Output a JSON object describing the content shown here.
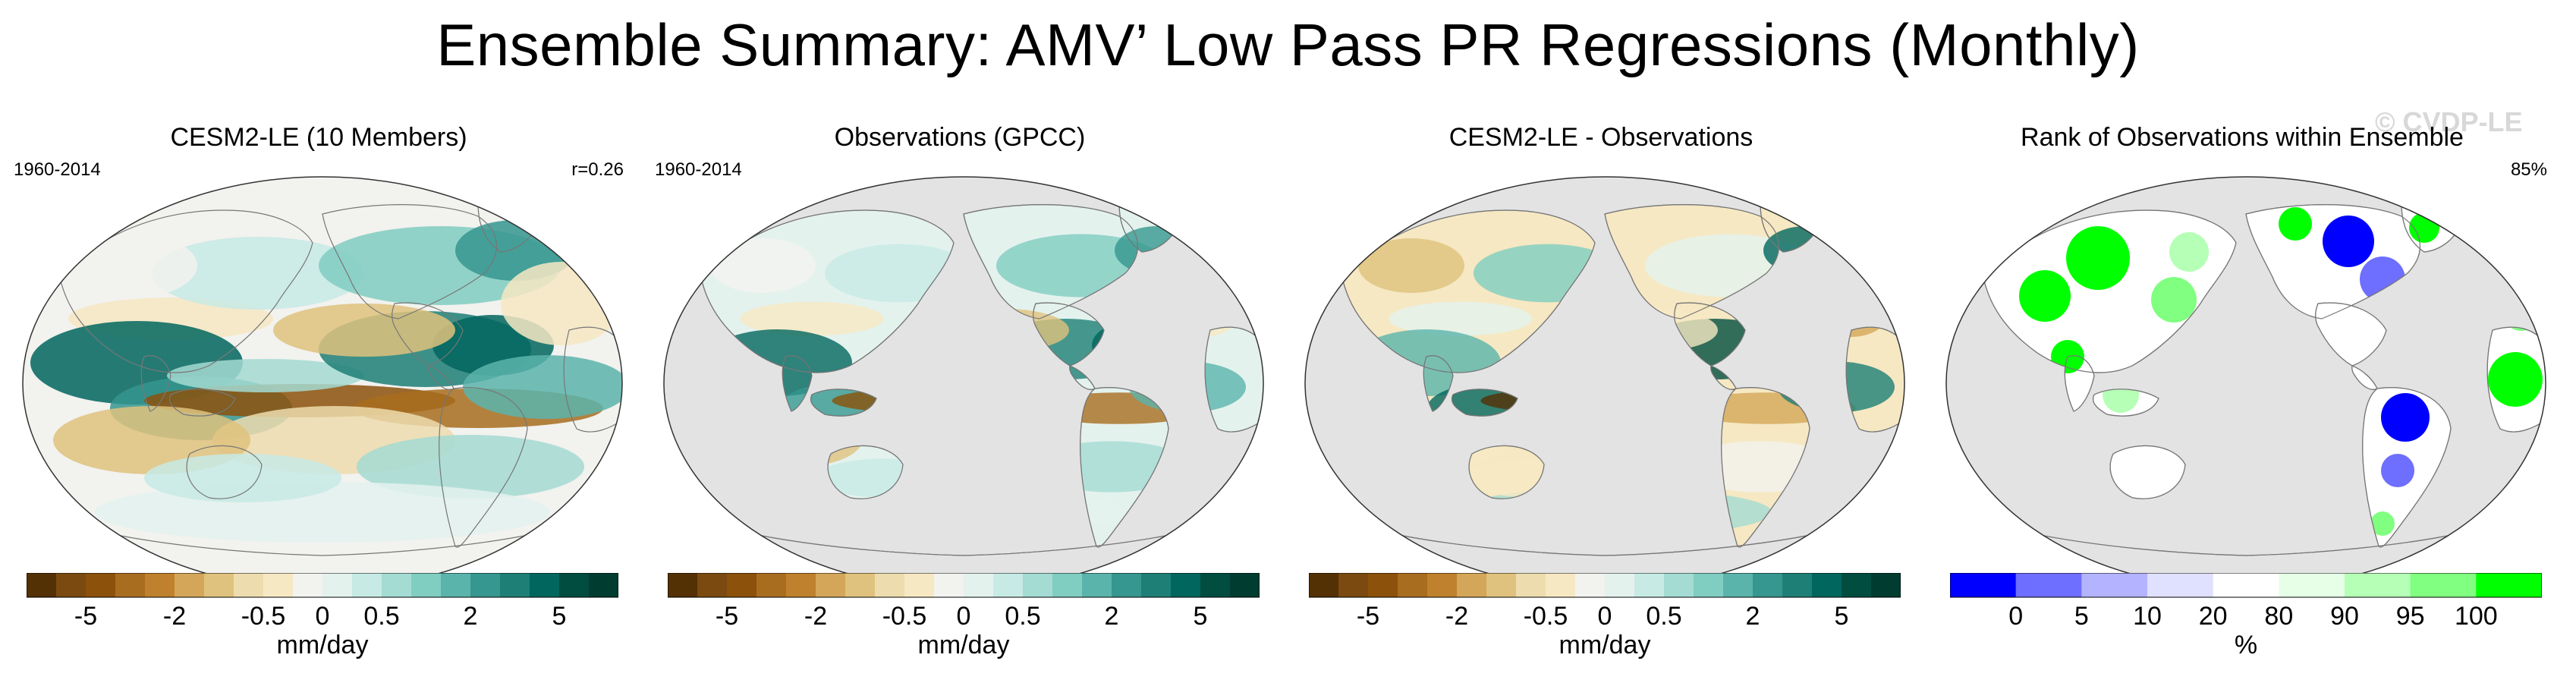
{
  "title": "Ensemble Summary: AMV’ Low Pass PR Regressions (Monthly)",
  "watermark": "© CVDP-LE",
  "colors": {
    "ocean_bg": "#e3e3e3",
    "land_white": "#ffffff",
    "coast": "#777777",
    "div_scale": [
      "#543005",
      "#7a4a10",
      "#8c510a",
      "#a86d1f",
      "#bf812d",
      "#d4a659",
      "#dfc27d",
      "#eddcae",
      "#f6e8c3",
      "#f2f2ef",
      "#e4f2ee",
      "#c7eae5",
      "#a4dbd2",
      "#80cdc1",
      "#5ab4ab",
      "#35978f",
      "#1d7f76",
      "#01665e",
      "#014d40",
      "#003c30"
    ],
    "rank_scale": [
      "#0000ff",
      "#6e6eff",
      "#b3b3ff",
      "#e0e0ff",
      "#ffffff",
      "#e6ffe6",
      "#b6ffb6",
      "#80ff80",
      "#00ff00"
    ]
  },
  "chart_data": [
    {
      "type": "heatmap",
      "title": "CESM2-LE (10 Members)",
      "period": "1960-2014",
      "stat": "r=0.26",
      "coverage": "global",
      "colorbar": {
        "ticks": [
          "-5",
          "-2",
          "-0.5",
          "0",
          "0.5",
          "2",
          "5"
        ],
        "label": "mm/day"
      }
    },
    {
      "type": "heatmap",
      "title": "Observations (GPCC)",
      "period": "1960-2014",
      "stat": "",
      "coverage": "land",
      "colorbar": {
        "ticks": [
          "-5",
          "-2",
          "-0.5",
          "0",
          "0.5",
          "2",
          "5"
        ],
        "label": "mm/day"
      }
    },
    {
      "type": "heatmap",
      "title": "CESM2-LE - Observations",
      "period": "",
      "stat": "",
      "coverage": "land",
      "colorbar": {
        "ticks": [
          "-5",
          "-2",
          "-0.5",
          "0",
          "0.5",
          "2",
          "5"
        ],
        "label": "mm/day"
      }
    },
    {
      "type": "heatmap",
      "title": "Rank of Observations within Ensemble",
      "period": "",
      "stat": "85%",
      "coverage": "rank",
      "colorbar": {
        "ticks": [
          "0",
          "5",
          "10",
          "20",
          "80",
          "90",
          "95",
          "100"
        ],
        "label": "%"
      }
    }
  ]
}
